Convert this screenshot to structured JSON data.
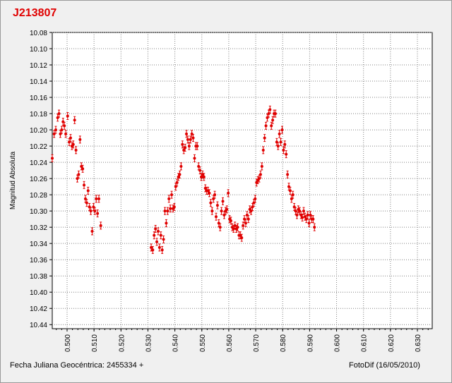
{
  "title": "J213807",
  "footer": {
    "left": "Fecha Juliana Geocéntrica: 2455334 +",
    "right": "FotoDif (16/05/2010)"
  },
  "colors": {
    "title": "#e00000",
    "points": "#e00000",
    "grid": "#808080"
  },
  "chart_data": {
    "type": "scatter",
    "title": "J213807",
    "ylabel": "Magnitud Absoluta",
    "xlabel": "Fecha Juliana Geocéntrica: 2455334 +",
    "xlim": [
      0.4945,
      0.6355
    ],
    "ylim": [
      10.08,
      10.445
    ],
    "y_inverted": true,
    "grid": true,
    "x_ticks": [
      "0.500",
      "0.510",
      "0.520",
      "0.530",
      "0.540",
      "0.550",
      "0.560",
      "0.570",
      "0.580",
      "0.590",
      "0.600",
      "0.610",
      "0.620",
      "0.630"
    ],
    "y_ticks": [
      "10.08",
      "10.10",
      "10.12",
      "10.14",
      "10.16",
      "10.18",
      "10.20",
      "10.22",
      "10.24",
      "10.26",
      "10.28",
      "10.30",
      "10.32",
      "10.34",
      "10.36",
      "10.38",
      "10.40",
      "10.42",
      "10.44"
    ],
    "points": [
      [
        0.4945,
        10.235
      ],
      [
        0.4952,
        10.205
      ],
      [
        0.4958,
        10.2
      ],
      [
        0.4965,
        10.185
      ],
      [
        0.497,
        10.18
      ],
      [
        0.4975,
        10.205
      ],
      [
        0.498,
        10.2
      ],
      [
        0.4985,
        10.19
      ],
      [
        0.499,
        10.195
      ],
      [
        0.4995,
        10.205
      ],
      [
        0.5002,
        10.183
      ],
      [
        0.5008,
        10.215
      ],
      [
        0.5013,
        10.21
      ],
      [
        0.5018,
        10.22
      ],
      [
        0.5023,
        10.218
      ],
      [
        0.5028,
        10.188
      ],
      [
        0.5033,
        10.225
      ],
      [
        0.5038,
        10.26
      ],
      [
        0.5043,
        10.255
      ],
      [
        0.5048,
        10.212
      ],
      [
        0.5053,
        10.245
      ],
      [
        0.5058,
        10.248
      ],
      [
        0.5063,
        10.268
      ],
      [
        0.5068,
        10.285
      ],
      [
        0.5073,
        10.29
      ],
      [
        0.5078,
        10.275
      ],
      [
        0.5083,
        10.295
      ],
      [
        0.5088,
        10.3
      ],
      [
        0.5093,
        10.325
      ],
      [
        0.5098,
        10.295
      ],
      [
        0.5103,
        10.3
      ],
      [
        0.5108,
        10.285
      ],
      [
        0.5113,
        10.303
      ],
      [
        0.5118,
        10.285
      ],
      [
        0.5125,
        10.318
      ],
      [
        0.5312,
        10.345
      ],
      [
        0.5318,
        10.348
      ],
      [
        0.5323,
        10.33
      ],
      [
        0.5328,
        10.322
      ],
      [
        0.5333,
        10.338
      ],
      [
        0.5338,
        10.325
      ],
      [
        0.5343,
        10.345
      ],
      [
        0.5348,
        10.33
      ],
      [
        0.5353,
        10.348
      ],
      [
        0.5358,
        10.335
      ],
      [
        0.5363,
        10.3
      ],
      [
        0.5368,
        10.315
      ],
      [
        0.5373,
        10.3
      ],
      [
        0.5378,
        10.285
      ],
      [
        0.5383,
        10.297
      ],
      [
        0.5388,
        10.28
      ],
      [
        0.5393,
        10.297
      ],
      [
        0.5398,
        10.295
      ],
      [
        0.5403,
        10.27
      ],
      [
        0.5408,
        10.265
      ],
      [
        0.5413,
        10.258
      ],
      [
        0.5418,
        10.255
      ],
      [
        0.5423,
        10.245
      ],
      [
        0.5428,
        10.218
      ],
      [
        0.5433,
        10.225
      ],
      [
        0.5438,
        10.222
      ],
      [
        0.5443,
        10.205
      ],
      [
        0.5448,
        10.212
      ],
      [
        0.5453,
        10.22
      ],
      [
        0.5458,
        10.212
      ],
      [
        0.5463,
        10.205
      ],
      [
        0.5468,
        10.21
      ],
      [
        0.5473,
        10.235
      ],
      [
        0.5478,
        10.22
      ],
      [
        0.5483,
        10.22
      ],
      [
        0.5488,
        10.245
      ],
      [
        0.5493,
        10.25
      ],
      [
        0.5498,
        10.258
      ],
      [
        0.5503,
        10.255
      ],
      [
        0.5508,
        10.258
      ],
      [
        0.5513,
        10.272
      ],
      [
        0.5518,
        10.275
      ],
      [
        0.5523,
        10.275
      ],
      [
        0.5528,
        10.278
      ],
      [
        0.5533,
        10.29
      ],
      [
        0.5538,
        10.3
      ],
      [
        0.5543,
        10.285
      ],
      [
        0.5548,
        10.28
      ],
      [
        0.5553,
        10.307
      ],
      [
        0.5558,
        10.293
      ],
      [
        0.5563,
        10.315
      ],
      [
        0.5568,
        10.32
      ],
      [
        0.5573,
        10.3
      ],
      [
        0.5578,
        10.288
      ],
      [
        0.5583,
        10.305
      ],
      [
        0.5588,
        10.3
      ],
      [
        0.5593,
        10.298
      ],
      [
        0.5598,
        10.278
      ],
      [
        0.5603,
        10.31
      ],
      [
        0.5608,
        10.312
      ],
      [
        0.5613,
        10.32
      ],
      [
        0.5618,
        10.322
      ],
      [
        0.5623,
        10.318
      ],
      [
        0.5628,
        10.322
      ],
      [
        0.5633,
        10.32
      ],
      [
        0.5638,
        10.33
      ],
      [
        0.5643,
        10.33
      ],
      [
        0.5648,
        10.333
      ],
      [
        0.5653,
        10.318
      ],
      [
        0.5658,
        10.31
      ],
      [
        0.5663,
        10.315
      ],
      [
        0.5668,
        10.305
      ],
      [
        0.5673,
        10.31
      ],
      [
        0.5678,
        10.298
      ],
      [
        0.5683,
        10.3
      ],
      [
        0.5688,
        10.295
      ],
      [
        0.5693,
        10.29
      ],
      [
        0.5698,
        10.285
      ],
      [
        0.5703,
        10.265
      ],
      [
        0.5708,
        10.262
      ],
      [
        0.5713,
        10.26
      ],
      [
        0.5718,
        10.255
      ],
      [
        0.5723,
        10.245
      ],
      [
        0.5728,
        10.225
      ],
      [
        0.5733,
        10.21
      ],
      [
        0.5738,
        10.195
      ],
      [
        0.5743,
        10.185
      ],
      [
        0.5748,
        10.18
      ],
      [
        0.5753,
        10.175
      ],
      [
        0.5758,
        10.195
      ],
      [
        0.5763,
        10.188
      ],
      [
        0.5768,
        10.18
      ],
      [
        0.5773,
        10.18
      ],
      [
        0.5778,
        10.215
      ],
      [
        0.5783,
        10.22
      ],
      [
        0.5788,
        10.205
      ],
      [
        0.5793,
        10.215
      ],
      [
        0.5798,
        10.2
      ],
      [
        0.5803,
        10.225
      ],
      [
        0.5808,
        10.218
      ],
      [
        0.5813,
        10.23
      ],
      [
        0.5818,
        10.255
      ],
      [
        0.5823,
        10.27
      ],
      [
        0.5828,
        10.275
      ],
      [
        0.5833,
        10.285
      ],
      [
        0.5838,
        10.28
      ],
      [
        0.5843,
        10.295
      ],
      [
        0.5848,
        10.3
      ],
      [
        0.5853,
        10.305
      ],
      [
        0.5858,
        10.298
      ],
      [
        0.5863,
        10.3
      ],
      [
        0.5868,
        10.305
      ],
      [
        0.5873,
        10.308
      ],
      [
        0.5878,
        10.3
      ],
      [
        0.5883,
        10.307
      ],
      [
        0.5888,
        10.31
      ],
      [
        0.5893,
        10.305
      ],
      [
        0.5898,
        10.315
      ],
      [
        0.5903,
        10.305
      ],
      [
        0.5908,
        10.31
      ],
      [
        0.5913,
        10.31
      ],
      [
        0.5918,
        10.32
      ]
    ]
  }
}
